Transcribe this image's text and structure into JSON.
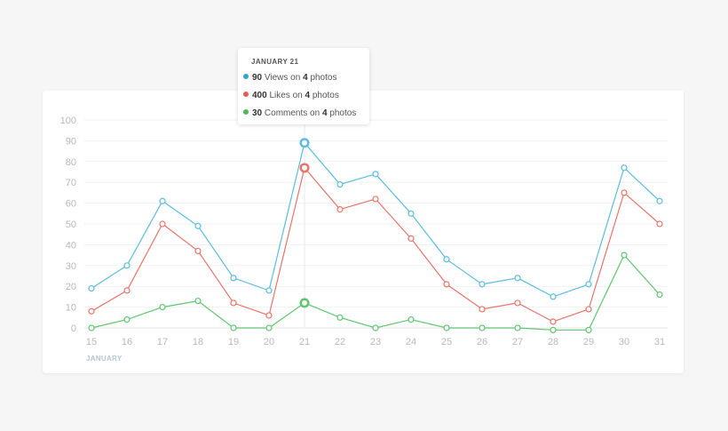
{
  "chart_data": {
    "type": "line",
    "x": [
      15,
      16,
      17,
      18,
      19,
      20,
      21,
      22,
      23,
      24,
      25,
      26,
      27,
      28,
      29,
      30,
      31
    ],
    "x_tick_labels": [
      "15",
      "16",
      "17",
      "18",
      "19",
      "20",
      "21",
      "22",
      "23",
      "24",
      "25",
      "26",
      "27",
      "28",
      "29",
      "30",
      "31"
    ],
    "xlabel": "JANUARY",
    "ylabel": "",
    "ylim": [
      0,
      100
    ],
    "y_ticks": [
      0,
      10,
      20,
      30,
      40,
      50,
      60,
      70,
      80,
      90,
      100
    ],
    "grid": true,
    "highlight_x": 21,
    "series": [
      {
        "color": "#5bbcdf",
        "values": [
          19,
          30,
          61,
          49,
          24,
          18,
          89,
          69,
          74,
          55,
          33,
          21,
          24,
          15,
          21,
          77,
          61
        ]
      },
      {
        "color": "#e8746a",
        "values": [
          8,
          18,
          50,
          37,
          12,
          6,
          77,
          57,
          62,
          43,
          21,
          9,
          12,
          3,
          9,
          65,
          50
        ]
      },
      {
        "color": "#5fc56f",
        "values": [
          0,
          4,
          10,
          13,
          0,
          0,
          12,
          5,
          0,
          4,
          0,
          0,
          0,
          -1,
          -1,
          35,
          16
        ]
      }
    ]
  },
  "tooltip": {
    "title": "JANUARY 21",
    "rows": [
      {
        "count": "90",
        "metric": "Views on",
        "items": "4",
        "unit": "photos",
        "color": "#3a9fd5"
      },
      {
        "count": "400",
        "metric": "Likes on",
        "items": "4",
        "unit": "photos",
        "color": "#e35d52"
      },
      {
        "count": "30",
        "metric": "Comments on",
        "items": "4",
        "unit": "photos",
        "color": "#4cb85c"
      }
    ]
  }
}
